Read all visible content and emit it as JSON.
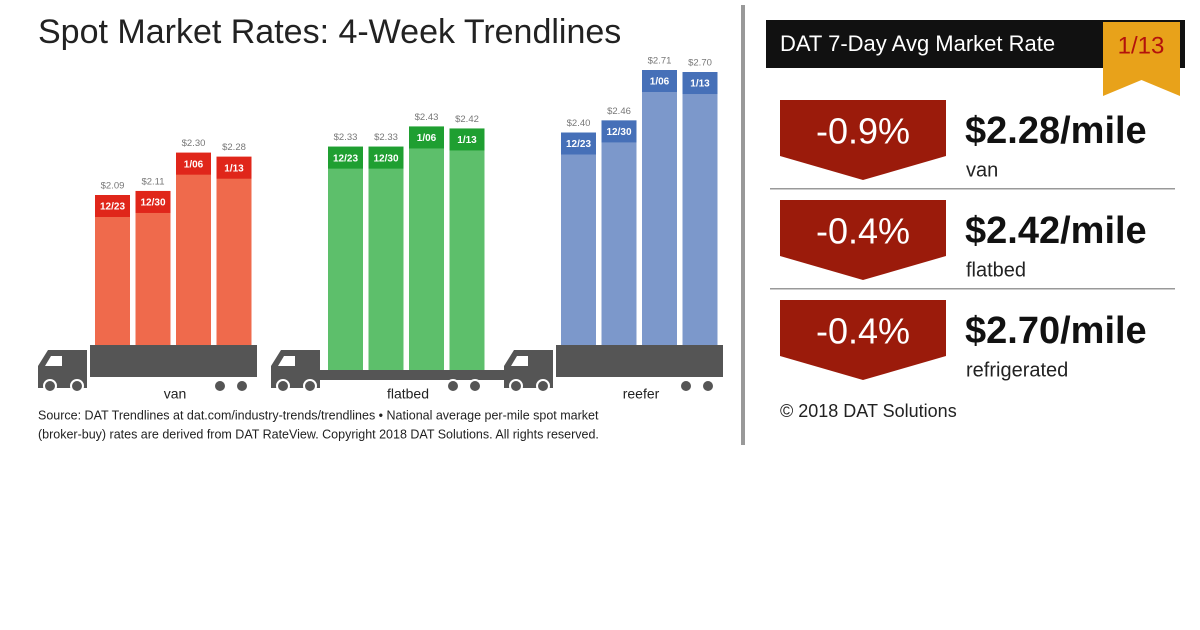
{
  "chart_data": {
    "type": "bar",
    "title": "Spot Market Rates: 4-Week Trendlines",
    "categories": [
      "12/23",
      "12/30",
      "1/06",
      "1/13"
    ],
    "series": [
      {
        "name": "van",
        "color": "#ef6a4c",
        "header_color": "#e0261a",
        "trailer": "box",
        "values": [
          2.09,
          2.11,
          2.3,
          2.28
        ],
        "value_labels": [
          "$2.09",
          "$2.11",
          "$2.30",
          "$2.28"
        ]
      },
      {
        "name": "flatbed",
        "color": "#5dbf6b",
        "header_color": "#1f9f31",
        "trailer": "flat",
        "values": [
          2.33,
          2.33,
          2.43,
          2.42
        ],
        "value_labels": [
          "$2.33",
          "$2.33",
          "$2.43",
          "$2.42"
        ]
      },
      {
        "name": "reefer",
        "color": "#7c98cb",
        "header_color": "#4670b8",
        "trailer": "box",
        "values": [
          2.4,
          2.46,
          2.71,
          2.7
        ],
        "value_labels": [
          "$2.40",
          "$2.46",
          "$2.71",
          "$2.70"
        ]
      }
    ],
    "source": [
      "Source: DAT Trendlines at dat.com/industry-trends/trendlines • National average per-mile spot market",
      "(broker-buy) rates are derived from DAT RateView. Copyright 2018 DAT Solutions. All rights reserved."
    ]
  },
  "rate_panel": {
    "title": "DAT 7-Day Avg Market Rate",
    "date": "1/13",
    "rows": [
      {
        "change": "-0.9%",
        "rate": "$2.28/mile",
        "label": "van"
      },
      {
        "change": "-0.4%",
        "rate": "$2.42/mile",
        "label": "flatbed"
      },
      {
        "change": "-0.4%",
        "rate": "$2.70/mile",
        "label": "refrigerated"
      }
    ],
    "copyright": "© 2018 DAT Solutions"
  }
}
